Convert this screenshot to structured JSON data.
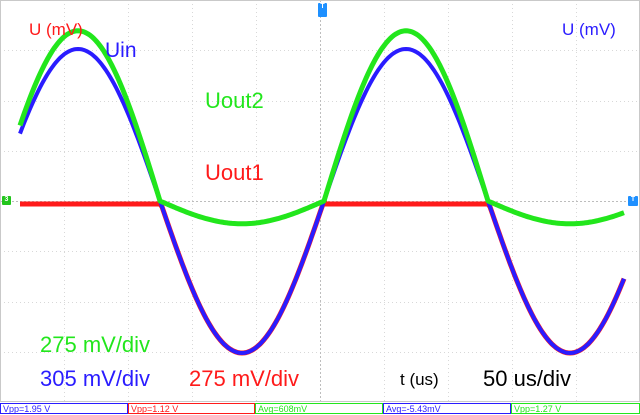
{
  "screen": {
    "y_unit_left": "U (mV)",
    "y_unit_right": "U (mV)",
    "x_axis_label": "t (us)",
    "timebase": "50 us/div"
  },
  "traces": {
    "uin": {
      "label": "Uin",
      "color": "#2a1cff",
      "scale": "305 mV/div"
    },
    "uout1": {
      "label": "Uout1",
      "color": "#ff1a1a",
      "scale": "275 mV/div"
    },
    "uout2": {
      "label": "Uout2",
      "color": "#22e61c",
      "scale": "275 mV/div"
    }
  },
  "markers": {
    "trigger_top": "T",
    "channel_left": "3",
    "channel_right": "T"
  },
  "measurements": [
    {
      "text": "Vpp=1.95 V",
      "color": "#2a1cff"
    },
    {
      "text": "Vpp=1.12 V",
      "color": "#ff1a1a"
    },
    {
      "text": "Avg=608mV",
      "color": "#22e61c"
    },
    {
      "text": "Avg=-5.43mV",
      "color": "#2a1cff"
    },
    {
      "text": "Vpp=1.27 V",
      "color": "#22e61c"
    }
  ],
  "colors": {
    "grid": "#d8d8d8",
    "marker_blue": "#1e90ff",
    "marker_green": "#22c51c",
    "text_black": "#000000"
  }
}
